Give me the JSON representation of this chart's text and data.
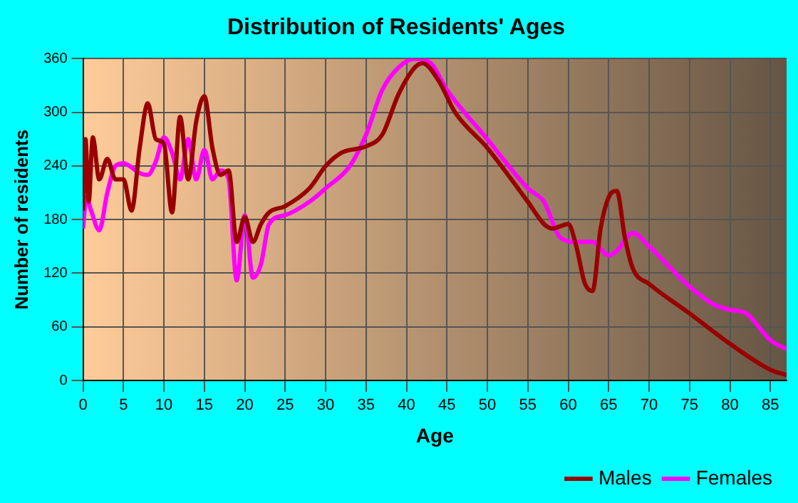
{
  "chart_data": {
    "type": "line",
    "title": "Distribution of Residents' Ages",
    "xlabel": "Age",
    "ylabel": "Number of residents",
    "xlim": [
      0,
      87
    ],
    "xticks": [
      0,
      5,
      10,
      15,
      20,
      25,
      30,
      35,
      40,
      45,
      50,
      55,
      60,
      65,
      70,
      75,
      80,
      85
    ],
    "ylim": [
      0,
      360
    ],
    "yticks": [
      0,
      60,
      120,
      180,
      240,
      300,
      360
    ],
    "grid": true,
    "legend": "bottom right",
    "series": [
      {
        "name": "Males",
        "color": "#990000",
        "x": [
          0,
          0.3,
          0.7,
          1.2,
          2,
          3,
          4,
          5,
          6,
          7,
          8,
          9,
          10,
          11,
          12,
          13,
          14,
          15,
          16,
          17,
          18,
          19,
          20,
          21,
          22,
          23,
          25,
          28,
          30,
          32,
          35,
          37,
          39,
          41,
          42,
          44,
          46,
          50,
          55,
          57,
          58,
          60,
          61,
          62,
          63,
          64,
          65,
          66,
          67,
          68,
          70,
          75,
          80,
          85,
          87
        ],
        "values": [
          190,
          270,
          200,
          272,
          225,
          248,
          225,
          225,
          190,
          260,
          310,
          270,
          265,
          188,
          295,
          225,
          290,
          318,
          260,
          230,
          235,
          155,
          183,
          155,
          175,
          188,
          195,
          215,
          240,
          255,
          262,
          275,
          320,
          350,
          355,
          335,
          300,
          260,
          200,
          175,
          170,
          175,
          150,
          110,
          100,
          170,
          205,
          212,
          160,
          125,
          108,
          75,
          41,
          12,
          6
        ]
      },
      {
        "name": "Females",
        "color": "#ff00ff",
        "x": [
          0,
          0.4,
          1,
          2,
          3,
          4,
          5,
          7,
          8,
          9,
          10,
          11,
          12,
          13,
          14,
          15,
          16,
          17,
          18,
          19,
          20,
          21,
          22,
          23,
          25,
          28,
          30,
          33,
          35,
          37,
          39,
          41,
          43,
          45,
          50,
          55,
          57,
          59,
          61,
          63,
          65,
          66,
          68,
          70,
          75,
          78,
          80,
          82,
          85,
          87
        ],
        "values": [
          170,
          205,
          190,
          168,
          210,
          240,
          243,
          232,
          230,
          245,
          272,
          255,
          225,
          270,
          225,
          258,
          225,
          235,
          225,
          112,
          185,
          115,
          130,
          175,
          185,
          200,
          215,
          240,
          275,
          325,
          350,
          360,
          355,
          325,
          270,
          215,
          200,
          160,
          155,
          155,
          140,
          145,
          165,
          150,
          105,
          85,
          79,
          75,
          45,
          35
        ]
      }
    ]
  }
}
